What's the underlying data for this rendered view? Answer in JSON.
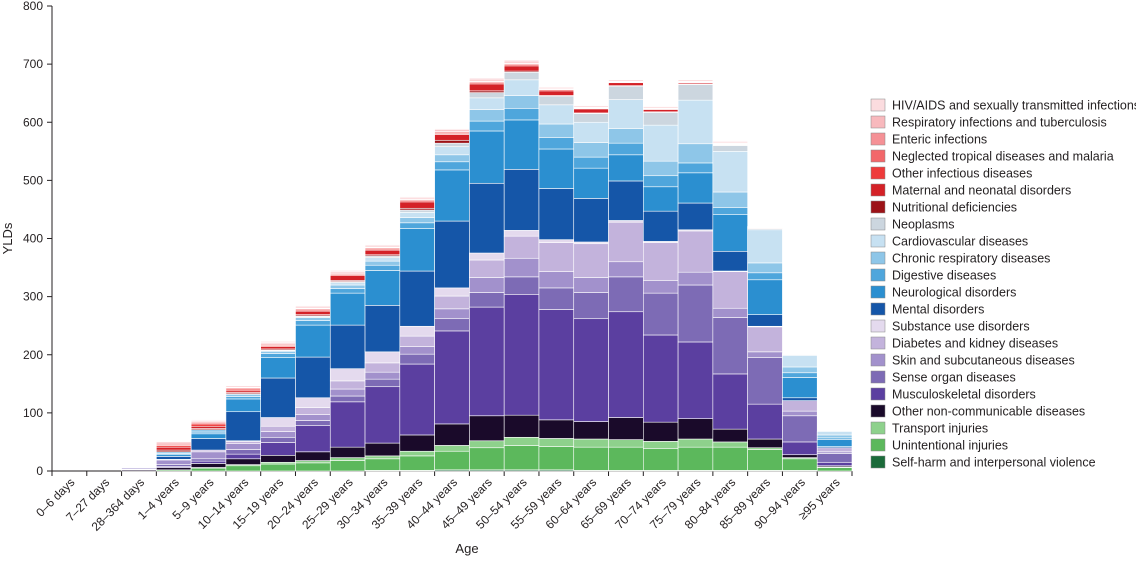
{
  "chart_data": {
    "type": "bar",
    "stacked": true,
    "xlabel": "Age",
    "ylabel": "YLDs",
    "ylim": [
      0,
      800
    ],
    "yticks": [
      0,
      100,
      200,
      300,
      400,
      500,
      600,
      700,
      800
    ],
    "grid": false,
    "legend_position": "right",
    "categories": [
      "0–6 days",
      "7–27 days",
      "28–364 days",
      "1–4 years",
      "5–9 years",
      "10–14 years",
      "15–19 years",
      "20–24 years",
      "25–29 years",
      "30–34 years",
      "35–39 years",
      "40–44 years",
      "45–49 years",
      "50–54 years",
      "55–59 years",
      "60–64 years",
      "65–69 years",
      "70–74 years",
      "75–79 years",
      "80–84 years",
      "85–89 years",
      "90–94 years",
      "≥95 years"
    ],
    "series": [
      {
        "name": "Self-harm and interpersonal violence",
        "color": "#1b6b3a",
        "values": [
          0,
          0,
          0,
          0,
          0,
          0,
          0,
          0,
          0,
          1,
          1,
          2,
          2,
          2,
          2,
          1,
          1,
          1,
          1,
          1,
          1,
          1,
          0
        ]
      },
      {
        "name": "Unintentional injuries",
        "color": "#5cb85c",
        "values": [
          0,
          0,
          0,
          2,
          5,
          9,
          12,
          14,
          18,
          20,
          25,
          32,
          38,
          42,
          40,
          40,
          40,
          38,
          40,
          40,
          36,
          20,
          6
        ]
      },
      {
        "name": "Transport injuries",
        "color": "#8ed18c",
        "values": [
          0,
          0,
          0,
          0,
          1,
          2,
          3,
          4,
          5,
          5,
          8,
          10,
          12,
          14,
          14,
          14,
          13,
          12,
          14,
          9,
          3,
          2,
          1
        ]
      },
      {
        "name": "Other non-communicable diseases",
        "color": "#1a0a2a",
        "values": [
          0,
          0,
          2,
          4,
          7,
          10,
          12,
          15,
          18,
          22,
          28,
          37,
          43,
          38,
          32,
          30,
          38,
          33,
          35,
          22,
          15,
          5,
          2
        ]
      },
      {
        "name": "Musculoskeletal disorders",
        "color": "#5b3fa0",
        "values": [
          0,
          0,
          0,
          2,
          4,
          8,
          22,
          45,
          78,
          97,
          122,
          160,
          187,
          208,
          190,
          177,
          182,
          150,
          132,
          95,
          60,
          22,
          6
        ]
      },
      {
        "name": "Sense organ diseases",
        "color": "#7d6bb5",
        "values": [
          0,
          0,
          1,
          3,
          4,
          8,
          9,
          9,
          10,
          13,
          17,
          21,
          25,
          30,
          37,
          45,
          60,
          72,
          98,
          97,
          80,
          45,
          15
        ]
      },
      {
        "name": "Skin and subcutaneous diseases",
        "color": "#a291cc",
        "values": [
          0,
          0,
          2,
          8,
          12,
          10,
          10,
          10,
          12,
          12,
          13,
          17,
          26,
          32,
          28,
          26,
          26,
          22,
          22,
          16,
          10,
          8,
          3
        ]
      },
      {
        "name": "Diabetes and kidney diseases",
        "color": "#c3b3dc",
        "values": [
          0,
          0,
          0,
          1,
          3,
          4,
          9,
          12,
          14,
          16,
          18,
          22,
          30,
          38,
          50,
          58,
          68,
          65,
          71,
          63,
          43,
          18,
          7
        ]
      },
      {
        "name": "Substance use disorders",
        "color": "#e4daee",
        "values": [
          0,
          0,
          0,
          0,
          0,
          1,
          15,
          17,
          21,
          19,
          17,
          14,
          12,
          10,
          5,
          3,
          3,
          2,
          2,
          1,
          1,
          0,
          0
        ]
      },
      {
        "name": "Mental disorders",
        "color": "#1556a8",
        "values": [
          0,
          0,
          0,
          5,
          20,
          50,
          68,
          70,
          75,
          80,
          95,
          115,
          120,
          105,
          88,
          75,
          68,
          52,
          46,
          34,
          20,
          5,
          2
        ]
      },
      {
        "name": "Neurological disorders",
        "color": "#2b8fd0",
        "values": [
          0,
          0,
          1,
          3,
          8,
          22,
          35,
          55,
          55,
          60,
          73,
          88,
          90,
          85,
          68,
          52,
          45,
          42,
          52,
          63,
          60,
          35,
          12
        ]
      },
      {
        "name": "Digestive diseases",
        "color": "#4fa6dc",
        "values": [
          0,
          0,
          1,
          2,
          3,
          4,
          7,
          8,
          8,
          9,
          10,
          14,
          17,
          20,
          20,
          19,
          20,
          19,
          17,
          12,
          12,
          8,
          3
        ]
      },
      {
        "name": "Chronic respiratory diseases",
        "color": "#8ec6e8",
        "values": [
          0,
          0,
          0,
          3,
          4,
          4,
          4,
          5,
          6,
          7,
          9,
          12,
          20,
          22,
          23,
          25,
          25,
          25,
          33,
          27,
          17,
          10,
          5
        ]
      },
      {
        "name": "Cardiovascular diseases",
        "color": "#c7e1f2",
        "values": [
          0,
          0,
          0,
          0,
          0,
          1,
          1,
          2,
          4,
          6,
          9,
          14,
          20,
          27,
          33,
          35,
          50,
          62,
          75,
          70,
          57,
          20,
          6
        ]
      },
      {
        "name": "Neoplasms",
        "color": "#ccd6df",
        "values": [
          0,
          0,
          0,
          0,
          0,
          0,
          1,
          1,
          2,
          3,
          4,
          6,
          9,
          13,
          15,
          15,
          23,
          22,
          27,
          10,
          2,
          1,
          0
        ]
      },
      {
        "name": "Nutritional deficiencies",
        "color": "#9c1217",
        "values": [
          0,
          0,
          1,
          3,
          2,
          2,
          2,
          2,
          2,
          2,
          3,
          5,
          3,
          2,
          1,
          1,
          1,
          1,
          1,
          1,
          0,
          0,
          0
        ]
      },
      {
        "name": "Maternal and neonatal disorders",
        "color": "#d42127",
        "values": [
          0,
          0,
          1,
          5,
          4,
          3,
          4,
          6,
          8,
          8,
          11,
          10,
          12,
          9,
          8,
          7,
          5,
          4,
          2,
          1,
          0,
          0,
          0
        ]
      },
      {
        "name": "Other infectious diseases",
        "color": "#ee3a3a",
        "values": [
          0,
          0,
          0,
          3,
          4,
          3,
          2,
          2,
          2,
          2,
          2,
          2,
          2,
          2,
          2,
          1,
          1,
          1,
          1,
          1,
          1,
          0,
          0
        ]
      },
      {
        "name": "Neglected tropical diseases and malaria",
        "color": "#f2676a",
        "values": [
          0,
          0,
          0,
          2,
          2,
          2,
          2,
          2,
          2,
          2,
          2,
          2,
          2,
          2,
          1,
          1,
          1,
          1,
          1,
          1,
          1,
          0,
          0
        ]
      },
      {
        "name": "Enteric infections",
        "color": "#f59196",
        "values": [
          0,
          0,
          0,
          2,
          2,
          1,
          1,
          1,
          1,
          1,
          1,
          1,
          1,
          1,
          1,
          1,
          1,
          1,
          1,
          1,
          1,
          1,
          0
        ]
      },
      {
        "name": "Respiratory infections and tuberculosis",
        "color": "#f8b9bd",
        "values": [
          0,
          0,
          0,
          2,
          2,
          2,
          2,
          2,
          2,
          2,
          2,
          3,
          3,
          3,
          2,
          2,
          2,
          2,
          2,
          2,
          1,
          1,
          0
        ]
      },
      {
        "name": "HIV/AIDS and sexually transmitted infections",
        "color": "#fbdcdf",
        "values": [
          0,
          0,
          0,
          0,
          1,
          1,
          2,
          2,
          2,
          2,
          2,
          2,
          2,
          2,
          1,
          1,
          1,
          1,
          1,
          1,
          0,
          0,
          0
        ]
      }
    ]
  }
}
